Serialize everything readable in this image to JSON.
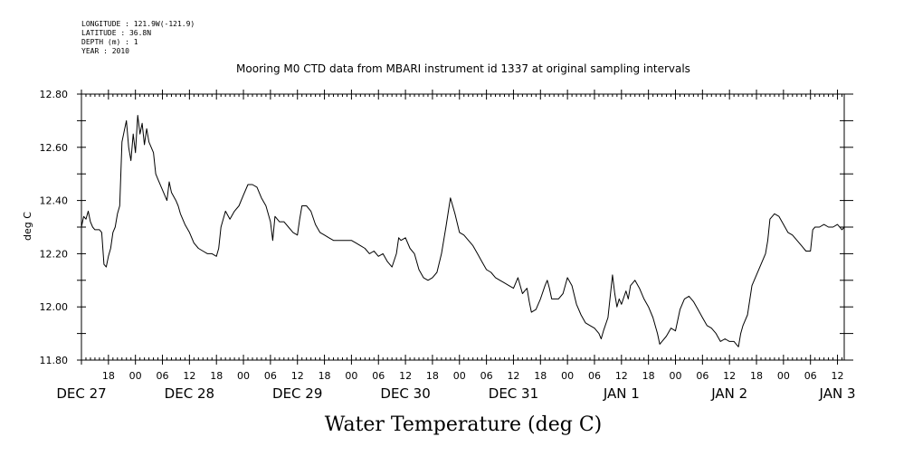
{
  "meta": {
    "longitude": "LONGITUDE : 121.9W(-121.9)",
    "latitude": "LATITUDE : 36.8N",
    "depth": "DEPTH (m) : 1",
    "year": "YEAR : 2010"
  },
  "chart_data": {
    "type": "line",
    "title": "Mooring M0 CTD data from MBARI instrument id 1337 at original sampling intervals",
    "ylabel": "deg C",
    "xlabel": "Water Temperature (deg C)",
    "ylim": [
      11.8,
      12.8
    ],
    "xlim_hours": [
      12.0,
      181.5
    ],
    "yticks": [
      "11.80",
      "12.00",
      "12.20",
      "12.40",
      "12.60",
      "12.80"
    ],
    "hour_labels": [
      "18",
      "00",
      "06",
      "12",
      "18",
      "00",
      "06",
      "12",
      "18",
      "00",
      "06",
      "12",
      "18",
      "00",
      "06",
      "12",
      "18",
      "00",
      "06",
      "12",
      "18",
      "00",
      "06",
      "12",
      "18",
      "00",
      "06",
      "12"
    ],
    "day_labels": [
      "DEC 27",
      "DEC 28",
      "DEC 29",
      "DEC 30",
      "DEC 31",
      "JAN  1",
      "JAN  2",
      "JAN  3"
    ],
    "x_unit": "hours from 00:00 DEC 27 2010",
    "series": [
      {
        "values": [
          [
            12.0,
            12.3
          ],
          [
            12.5,
            12.34
          ],
          [
            13.0,
            12.33
          ],
          [
            13.5,
            12.36
          ],
          [
            14.0,
            12.32
          ],
          [
            14.5,
            12.3
          ],
          [
            15.0,
            12.29
          ],
          [
            16.0,
            12.29
          ],
          [
            16.5,
            12.28
          ],
          [
            17.0,
            12.16
          ],
          [
            17.5,
            12.15
          ],
          [
            18.0,
            12.19
          ],
          [
            18.5,
            12.22
          ],
          [
            19.0,
            12.28
          ],
          [
            19.5,
            12.3
          ],
          [
            20.0,
            12.35
          ],
          [
            20.5,
            12.38
          ],
          [
            21.0,
            12.62
          ],
          [
            21.5,
            12.66
          ],
          [
            22.0,
            12.7
          ],
          [
            22.5,
            12.6
          ],
          [
            23.0,
            12.55
          ],
          [
            23.5,
            12.65
          ],
          [
            24.0,
            12.58
          ],
          [
            24.5,
            12.72
          ],
          [
            25.0,
            12.65
          ],
          [
            25.5,
            12.69
          ],
          [
            26.0,
            12.61
          ],
          [
            26.5,
            12.67
          ],
          [
            27.0,
            12.62
          ],
          [
            28.0,
            12.58
          ],
          [
            28.5,
            12.5
          ],
          [
            29.0,
            12.48
          ],
          [
            30.0,
            12.44
          ],
          [
            30.5,
            12.42
          ],
          [
            31.0,
            12.4
          ],
          [
            31.5,
            12.47
          ],
          [
            32.0,
            12.43
          ],
          [
            33.0,
            12.4
          ],
          [
            33.5,
            12.38
          ],
          [
            34.0,
            12.35
          ],
          [
            35.0,
            12.31
          ],
          [
            36.0,
            12.28
          ],
          [
            37.0,
            12.24
          ],
          [
            38.0,
            12.22
          ],
          [
            39.0,
            12.21
          ],
          [
            40.0,
            12.2
          ],
          [
            41.0,
            12.2
          ],
          [
            42.0,
            12.19
          ],
          [
            42.5,
            12.22
          ],
          [
            43.0,
            12.3
          ],
          [
            44.0,
            12.36
          ],
          [
            45.0,
            12.33
          ],
          [
            46.0,
            12.36
          ],
          [
            47.0,
            12.38
          ],
          [
            48.0,
            12.42
          ],
          [
            49.0,
            12.46
          ],
          [
            50.0,
            12.46
          ],
          [
            51.0,
            12.45
          ],
          [
            52.0,
            12.41
          ],
          [
            53.0,
            12.38
          ],
          [
            54.0,
            12.32
          ],
          [
            54.5,
            12.25
          ],
          [
            55.0,
            12.34
          ],
          [
            56.0,
            12.32
          ],
          [
            57.0,
            12.32
          ],
          [
            58.0,
            12.3
          ],
          [
            59.0,
            12.28
          ],
          [
            60.0,
            12.27
          ],
          [
            60.5,
            12.33
          ],
          [
            61.0,
            12.38
          ],
          [
            62.0,
            12.38
          ],
          [
            63.0,
            12.36
          ],
          [
            64.0,
            12.31
          ],
          [
            65.0,
            12.28
          ],
          [
            66.0,
            12.27
          ],
          [
            67.0,
            12.26
          ],
          [
            68.0,
            12.25
          ],
          [
            70.0,
            12.25
          ],
          [
            71.0,
            12.25
          ],
          [
            72.0,
            12.25
          ],
          [
            73.0,
            12.24
          ],
          [
            74.0,
            12.23
          ],
          [
            75.0,
            12.22
          ],
          [
            76.0,
            12.2
          ],
          [
            77.0,
            12.21
          ],
          [
            78.0,
            12.19
          ],
          [
            79.0,
            12.2
          ],
          [
            80.0,
            12.17
          ],
          [
            81.0,
            12.15
          ],
          [
            82.0,
            12.2
          ],
          [
            82.5,
            12.26
          ],
          [
            83.0,
            12.25
          ],
          [
            84.0,
            12.26
          ],
          [
            85.0,
            12.22
          ],
          [
            86.0,
            12.2
          ],
          [
            87.0,
            12.14
          ],
          [
            88.0,
            12.11
          ],
          [
            89.0,
            12.1
          ],
          [
            90.0,
            12.11
          ],
          [
            91.0,
            12.13
          ],
          [
            92.0,
            12.2
          ],
          [
            93.0,
            12.3
          ],
          [
            94.0,
            12.41
          ],
          [
            95.0,
            12.35
          ],
          [
            96.0,
            12.28
          ],
          [
            97.0,
            12.27
          ],
          [
            98.0,
            12.25
          ],
          [
            99.0,
            12.23
          ],
          [
            100.0,
            12.2
          ],
          [
            101.0,
            12.17
          ],
          [
            102.0,
            12.14
          ],
          [
            103.0,
            12.13
          ],
          [
            104.0,
            12.11
          ],
          [
            105.0,
            12.1
          ],
          [
            106.0,
            12.09
          ],
          [
            107.0,
            12.08
          ],
          [
            108.0,
            12.07
          ],
          [
            109.0,
            12.11
          ],
          [
            110.0,
            12.05
          ],
          [
            111.0,
            12.07
          ],
          [
            111.5,
            12.02
          ],
          [
            112.0,
            11.98
          ],
          [
            113.0,
            11.99
          ],
          [
            114.0,
            12.03
          ],
          [
            115.0,
            12.08
          ],
          [
            115.5,
            12.1
          ],
          [
            116.0,
            12.07
          ],
          [
            116.5,
            12.03
          ],
          [
            117.0,
            12.03
          ],
          [
            118.0,
            12.03
          ],
          [
            119.0,
            12.05
          ],
          [
            120.0,
            12.11
          ],
          [
            121.0,
            12.08
          ],
          [
            122.0,
            12.01
          ],
          [
            123.0,
            11.97
          ],
          [
            124.0,
            11.94
          ],
          [
            125.0,
            11.93
          ],
          [
            126.0,
            11.92
          ],
          [
            127.0,
            11.9
          ],
          [
            127.5,
            11.88
          ],
          [
            128.0,
            11.91
          ],
          [
            129.0,
            11.96
          ],
          [
            129.5,
            12.04
          ],
          [
            130.0,
            12.12
          ],
          [
            130.5,
            12.05
          ],
          [
            131.0,
            12.0
          ],
          [
            131.5,
            12.03
          ],
          [
            132.0,
            12.01
          ],
          [
            133.0,
            12.06
          ],
          [
            133.5,
            12.03
          ],
          [
            134.0,
            12.08
          ],
          [
            135.0,
            12.1
          ],
          [
            136.0,
            12.07
          ],
          [
            137.0,
            12.03
          ],
          [
            138.0,
            12.0
          ],
          [
            139.0,
            11.96
          ],
          [
            140.0,
            11.9
          ],
          [
            140.5,
            11.86
          ],
          [
            141.0,
            11.87
          ],
          [
            142.0,
            11.89
          ],
          [
            143.0,
            11.92
          ],
          [
            144.0,
            11.91
          ],
          [
            144.5,
            11.95
          ],
          [
            145.0,
            11.99
          ],
          [
            146.0,
            12.03
          ],
          [
            147.0,
            12.04
          ],
          [
            148.0,
            12.02
          ],
          [
            149.0,
            11.99
          ],
          [
            150.0,
            11.96
          ],
          [
            151.0,
            11.93
          ],
          [
            152.0,
            11.92
          ],
          [
            153.0,
            11.9
          ],
          [
            154.0,
            11.87
          ],
          [
            155.0,
            11.88
          ],
          [
            156.0,
            11.87
          ],
          [
            157.0,
            11.87
          ],
          [
            157.5,
            11.86
          ],
          [
            158.0,
            11.85
          ],
          [
            158.5,
            11.9
          ],
          [
            159.0,
            11.93
          ],
          [
            160.0,
            11.97
          ],
          [
            161.0,
            12.08
          ],
          [
            162.0,
            12.12
          ],
          [
            163.0,
            12.16
          ],
          [
            164.0,
            12.2
          ],
          [
            164.5,
            12.25
          ],
          [
            165.0,
            12.33
          ],
          [
            166.0,
            12.35
          ],
          [
            167.0,
            12.34
          ],
          [
            168.0,
            12.31
          ],
          [
            169.0,
            12.28
          ],
          [
            170.0,
            12.27
          ],
          [
            171.0,
            12.25
          ],
          [
            172.0,
            12.23
          ],
          [
            173.0,
            12.21
          ],
          [
            174.0,
            12.21
          ],
          [
            174.5,
            12.29
          ],
          [
            175.0,
            12.3
          ],
          [
            176.0,
            12.3
          ],
          [
            177.0,
            12.31
          ],
          [
            178.0,
            12.3
          ],
          [
            179.0,
            12.3
          ],
          [
            180.0,
            12.31
          ],
          [
            181.0,
            12.29
          ],
          [
            181.5,
            12.3
          ]
        ]
      }
    ],
    "grid": false
  }
}
